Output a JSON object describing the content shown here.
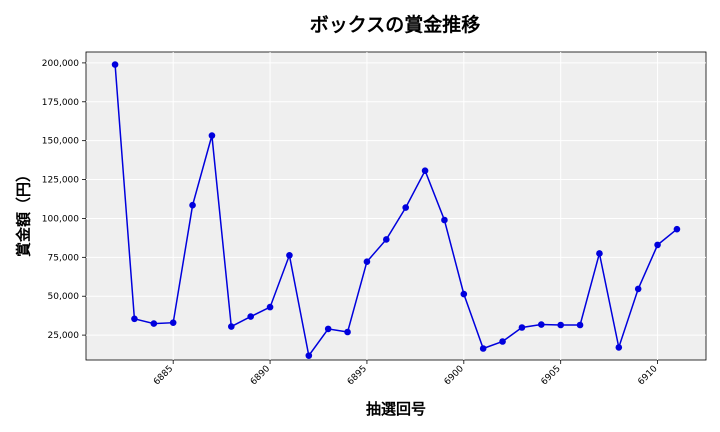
{
  "chart_data": {
    "type": "line",
    "title": "ボックスの賞金推移",
    "xlabel": "抽選回号",
    "ylabel": "賞金額（円）",
    "xlim": [
      6880.5,
      6912.5
    ],
    "ylim": [
      9000,
      207000
    ],
    "x_ticks": [
      6885,
      6890,
      6895,
      6900,
      6905,
      6910
    ],
    "y_ticks": [
      25000,
      50000,
      75000,
      100000,
      125000,
      150000,
      175000,
      200000
    ],
    "y_tick_labels": [
      "25,000",
      "50,000",
      "75,000",
      "100,000",
      "125,000",
      "150,000",
      "175,000",
      "200,000"
    ],
    "grid": true,
    "line_color": "#0000dd",
    "background_color": "#efefef",
    "series": [
      {
        "x": [
          6882,
          6883,
          6884,
          6885,
          6886,
          6887,
          6888,
          6889,
          6890,
          6891,
          6892,
          6893,
          6894,
          6895,
          6896,
          6897,
          6898,
          6899,
          6900,
          6901,
          6902,
          6903,
          6904,
          6905,
          6906,
          6907,
          6908,
          6909,
          6910,
          6911
        ],
        "values": [
          198900,
          35500,
          32400,
          33000,
          108500,
          153300,
          30500,
          36900,
          43000,
          76300,
          11800,
          29000,
          27000,
          72200,
          86500,
          107000,
          130700,
          99000,
          51400,
          16400,
          20900,
          29900,
          31800,
          31500,
          31500,
          77500,
          17100,
          54700,
          83000,
          93100
        ]
      }
    ]
  }
}
